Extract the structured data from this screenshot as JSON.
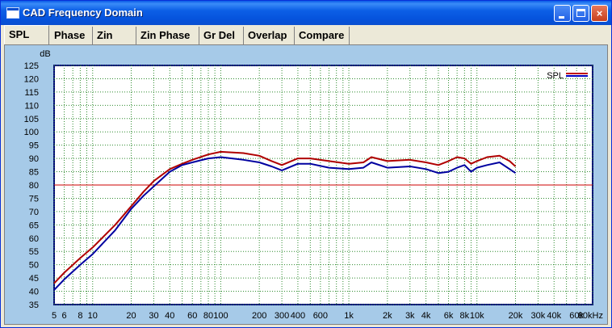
{
  "window": {
    "title": "CAD Frequency Domain"
  },
  "title_buttons": {
    "minimize": "",
    "maximize": "",
    "close": "×"
  },
  "tabs": [
    {
      "label": "SPL",
      "active": true
    },
    {
      "label": "Phase",
      "active": false
    },
    {
      "label": "Zin",
      "active": false
    },
    {
      "label": "Zin Phase",
      "active": false
    },
    {
      "label": "Gr Del",
      "active": false
    },
    {
      "label": "Overlap",
      "active": false
    },
    {
      "label": "Compare",
      "active": false
    }
  ],
  "chart_data": {
    "type": "line",
    "ylabel": "dB",
    "xlabel": "",
    "x_scale": "log",
    "xlim": [
      5,
      80000
    ],
    "ylim": [
      35,
      125
    ],
    "y_ticks": [
      35,
      40,
      45,
      50,
      55,
      60,
      65,
      70,
      75,
      80,
      85,
      90,
      95,
      100,
      105,
      110,
      115,
      120,
      125
    ],
    "x_tick_labels": [
      {
        "value": 5,
        "label": "5"
      },
      {
        "value": 6,
        "label": "6"
      },
      {
        "value": 8,
        "label": "8"
      },
      {
        "value": 10,
        "label": "10"
      },
      {
        "value": 20,
        "label": "20"
      },
      {
        "value": 30,
        "label": "30"
      },
      {
        "value": 40,
        "label": "40"
      },
      {
        "value": 60,
        "label": "60"
      },
      {
        "value": 80,
        "label": "80"
      },
      {
        "value": 100,
        "label": "100"
      },
      {
        "value": 200,
        "label": "200"
      },
      {
        "value": 300,
        "label": "300"
      },
      {
        "value": 400,
        "label": "400"
      },
      {
        "value": 600,
        "label": "600"
      },
      {
        "value": 1000,
        "label": "1k"
      },
      {
        "value": 2000,
        "label": "2k"
      },
      {
        "value": 3000,
        "label": "3k"
      },
      {
        "value": 4000,
        "label": "4k"
      },
      {
        "value": 6000,
        "label": "6k"
      },
      {
        "value": 8000,
        "label": "8k"
      },
      {
        "value": 10000,
        "label": "10k"
      },
      {
        "value": 20000,
        "label": "20k"
      },
      {
        "value": 30000,
        "label": "30k"
      },
      {
        "value": 40000,
        "label": "40k"
      },
      {
        "value": 60000,
        "label": "60k"
      },
      {
        "value": 80000,
        "label": "80kHz"
      }
    ],
    "reference_line": {
      "y": 80,
      "color": "#cc0000"
    },
    "grid": true,
    "legend": {
      "label": "SPL",
      "placement": "top-right",
      "colors": [
        "#c00000",
        "#0000c0"
      ]
    },
    "series": [
      {
        "color": "#b00000",
        "x": [
          5,
          6,
          8,
          10,
          15,
          20,
          25,
          30,
          40,
          50,
          60,
          80,
          100,
          150,
          200,
          250,
          300,
          400,
          500,
          700,
          1000,
          1300,
          1500,
          2000,
          3000,
          4000,
          5000,
          6000,
          7000,
          8000,
          9000,
          10000,
          12000,
          15000,
          18000,
          20000
        ],
        "y": [
          43,
          47,
          52.5,
          56.5,
          65,
          72,
          77.5,
          81.5,
          86,
          88,
          89.5,
          91.5,
          92.5,
          92,
          91,
          89,
          87.5,
          90,
          90,
          89,
          88,
          88.5,
          90.5,
          89,
          89.5,
          88.5,
          87.5,
          89,
          90.5,
          90,
          88,
          89,
          90.5,
          91,
          89,
          87
        ]
      },
      {
        "color": "#0000a0",
        "x": [
          5,
          6,
          8,
          10,
          15,
          20,
          25,
          30,
          40,
          50,
          60,
          80,
          100,
          150,
          200,
          250,
          300,
          400,
          500,
          700,
          1000,
          1300,
          1500,
          2000,
          3000,
          4000,
          5000,
          6000,
          7000,
          8000,
          9000,
          10000,
          12000,
          15000,
          18000,
          20000
        ],
        "y": [
          40.5,
          44.5,
          50,
          54,
          63,
          71,
          76,
          79.5,
          85,
          87.5,
          88.5,
          90,
          90.5,
          89.5,
          88.5,
          87,
          85.5,
          88,
          88,
          86.5,
          86,
          86.5,
          88.5,
          86.5,
          87,
          86,
          84.5,
          85,
          86.5,
          87.5,
          85,
          86.5,
          87.5,
          88.5,
          86,
          84.5
        ]
      }
    ]
  }
}
